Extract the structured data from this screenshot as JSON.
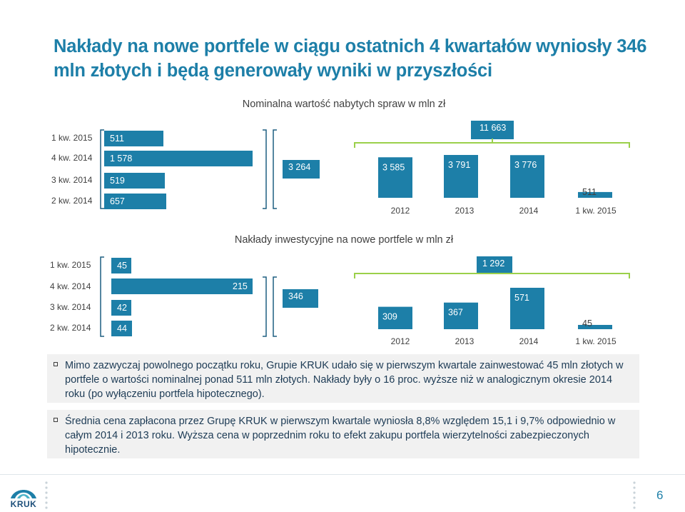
{
  "title": "Nakłady na nowe portfele w ciągu ostatnich 4 kwartałów wyniosły 346 mln złotych i będą generowały wyniki w przyszłości",
  "colors": {
    "accent": "#1d7fa8",
    "text": "#404040",
    "box_bg": "#f1f1f1"
  },
  "chart_data": [
    {
      "type": "bar",
      "title": "Nominalna wartość nabytych spraw w mln zł",
      "quarters": [
        "1 kw. 2015",
        "4 kw. 2014",
        "3 kw. 2014",
        "2 kw. 2014"
      ],
      "quarter_values": [
        "511",
        "1 578",
        "519",
        "657"
      ],
      "sum_label": "3 264",
      "categories": [
        "2012",
        "2013",
        "2014",
        "1 kw. 2015"
      ],
      "values": [
        3585,
        3791,
        3776,
        511
      ],
      "value_labels": [
        "3 585",
        "3 791",
        "3 776",
        "511"
      ],
      "total_label": "11 663"
    },
    {
      "type": "bar",
      "title": "Nakłady inwestycyjne na nowe portfele w mln zł",
      "quarters": [
        "1 kw. 2015",
        "4 kw. 2014",
        "3 kw. 2014",
        "2 kw. 2014"
      ],
      "quarter_values": [
        "45",
        "215",
        "42",
        "44"
      ],
      "sum_label": "346",
      "categories": [
        "2012",
        "2013",
        "2014",
        "1 kw. 2015"
      ],
      "values": [
        309,
        367,
        571,
        45
      ],
      "value_labels": [
        "309",
        "367",
        "571",
        "45"
      ],
      "total_label": "1 292"
    }
  ],
  "bullets": [
    "Mimo zazwyczaj powolnego początku roku, Grupie KRUK udało się w pierwszym kwartale zainwestować 45 mln złotych w portfele o wartości nominalnej ponad 511 mln złotych. Nakłady były o 16 proc. wyższe niż w analogicznym okresie 2014 roku (po wyłączeniu portfela hipotecznego).",
    "Średnia cena zapłacona przez Grupę KRUK w pierwszym kwartale wyniosła 8,8% względem 15,1 i 9,7% odpowiednio w całym 2014 i 2013 roku. Wyższa cena w poprzednim roku to efekt zakupu portfela wierzytelności zabezpieczonych hipotecznie."
  ],
  "footer": {
    "logo_text": "KRUK",
    "page_number": "6"
  }
}
